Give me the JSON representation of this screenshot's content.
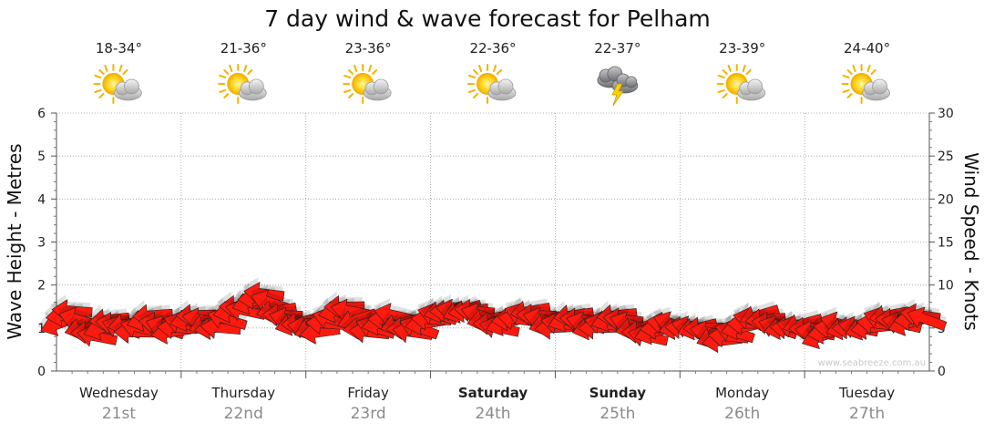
{
  "chart_data": {
    "type": "line",
    "title": "7 day wind & wave forecast for Pelham",
    "y_left_label": "Wave Height - Metres",
    "y_right_label": "Wind Speed - Knots",
    "y_left_ticks": [
      "0",
      "1",
      "2",
      "3",
      "4",
      "5",
      "6"
    ],
    "y_right_ticks": [
      "0",
      "5",
      "10",
      "15",
      "20",
      "25",
      "30"
    ],
    "y_left_range": [
      0,
      6
    ],
    "y_right_range": [
      0,
      30
    ],
    "grid": true,
    "watermark": "www.seabreeze.com.au",
    "days": [
      {
        "name": "Wednesday",
        "date": "21st",
        "temp": "18-34°",
        "weather": "partly-cloudy-icon",
        "bold": false
      },
      {
        "name": "Thursday",
        "date": "22nd",
        "temp": "21-36°",
        "weather": "partly-cloudy-icon",
        "bold": false
      },
      {
        "name": "Friday",
        "date": "23rd",
        "temp": "23-36°",
        "weather": "partly-cloudy-icon",
        "bold": false
      },
      {
        "name": "Saturday",
        "date": "24th",
        "temp": "22-36°",
        "weather": "partly-cloudy-icon",
        "bold": true
      },
      {
        "name": "Sunday",
        "date": "25th",
        "temp": "22-37°",
        "weather": "thunderstorm-icon",
        "bold": true
      },
      {
        "name": "Monday",
        "date": "26th",
        "temp": "23-39°",
        "weather": "partly-cloudy-icon",
        "bold": false
      },
      {
        "name": "Tuesday",
        "date": "27th",
        "temp": "24-40°",
        "weather": "partly-cloudy-icon",
        "bold": false
      }
    ],
    "series": [
      {
        "name": "Wind Speed - Knots",
        "color": "#ff1a0f",
        "values": [
          5.5,
          6.5,
          7,
          6,
          5,
          4.5,
          4,
          5,
          6,
          5.5,
          5,
          5.5,
          4.5,
          5,
          6,
          6.5,
          5.5,
          5,
          4.5,
          5,
          5.5,
          6,
          6.5,
          6,
          5.5,
          5,
          5,
          6,
          7,
          7.5,
          7,
          8,
          8.5,
          9,
          8,
          7,
          6.5,
          6,
          5.5,
          5.5,
          5,
          5,
          4.5,
          5.5,
          6,
          7,
          7.5,
          7,
          6,
          5,
          4.5,
          5,
          5.5,
          6,
          6.5,
          5.5,
          5,
          4.5,
          5,
          5.5,
          6,
          6.5,
          7,
          7,
          7,
          7,
          7,
          7,
          6.5,
          6,
          5.5,
          5,
          5.5,
          6,
          6,
          6.5,
          7,
          6.5,
          6,
          5.5,
          5,
          5.5,
          6,
          6.5,
          6,
          5.5,
          5,
          5,
          5.5,
          6,
          6.5,
          6,
          5.5,
          5,
          4.5,
          4,
          4.5,
          5,
          5.5,
          5.5,
          5,
          5,
          5,
          5,
          5,
          4.5,
          4,
          3.5,
          4,
          4.5,
          5,
          5.5,
          6,
          6.5,
          6,
          5.5,
          5,
          5,
          5,
          5,
          5.5,
          5,
          4.5,
          4,
          4.5,
          5,
          5.5,
          5,
          5,
          5,
          5,
          5,
          5.5,
          6,
          6.5,
          6,
          5.5,
          5.5,
          6,
          6.5,
          6
        ]
      },
      {
        "name": "Wave Height - Metres",
        "color": "#ff1a0f",
        "values": [
          1.1,
          1.3,
          1.4,
          1.2,
          1.0,
          0.9,
          0.8,
          1.0,
          1.2,
          1.1,
          1.0,
          1.1,
          0.9,
          1.0,
          1.2,
          1.3,
          1.1,
          1.0,
          0.9,
          1.0,
          1.1,
          1.2,
          1.3,
          1.2,
          1.1,
          1.0,
          1.0,
          1.2,
          1.4,
          1.5,
          1.4,
          1.6,
          1.7,
          1.8,
          1.6,
          1.4,
          1.3,
          1.2,
          1.1,
          1.1,
          1.0,
          1.0,
          0.9,
          1.1,
          1.2,
          1.4,
          1.5,
          1.4,
          1.2,
          1.0,
          0.9,
          1.0,
          1.1,
          1.2,
          1.3,
          1.1,
          1.0,
          0.9,
          1.0,
          1.1,
          1.2,
          1.3,
          1.4,
          1.4,
          1.4,
          1.4,
          1.4,
          1.4,
          1.3,
          1.2,
          1.1,
          1.0,
          1.1,
          1.2,
          1.2,
          1.3,
          1.4,
          1.3,
          1.2,
          1.1,
          1.0,
          1.1,
          1.2,
          1.3,
          1.2,
          1.1,
          1.0,
          1.0,
          1.1,
          1.2,
          1.3,
          1.2,
          1.1,
          1.0,
          0.9,
          0.8,
          0.9,
          1.0,
          1.1,
          1.1,
          1.0,
          1.0,
          1.0,
          1.0,
          1.0,
          0.9,
          0.8,
          0.7,
          0.8,
          0.9,
          1.0,
          1.1,
          1.2,
          1.3,
          1.2,
          1.1,
          1.0,
          1.0,
          1.0,
          1.0,
          1.1,
          1.0,
          0.9,
          0.8,
          0.9,
          1.0,
          1.1,
          1.0,
          1.0,
          1.0,
          1.0,
          1.0,
          1.1,
          1.2,
          1.3,
          1.2,
          1.1,
          1.1,
          1.2,
          1.3,
          1.2
        ]
      }
    ],
    "wind_direction": "mostly from the east-southeast, arrows point west"
  }
}
